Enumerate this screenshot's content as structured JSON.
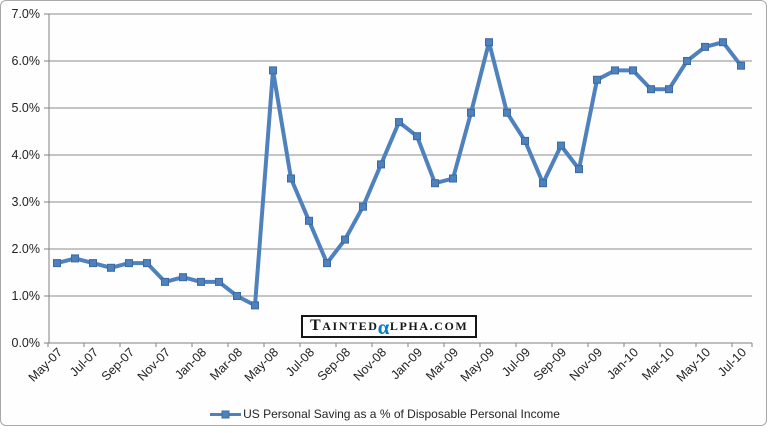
{
  "chart_data": {
    "type": "line",
    "title": "",
    "xlabel": "",
    "ylabel": "",
    "categories": [
      "May-07",
      "Jun-07",
      "Jul-07",
      "Aug-07",
      "Sep-07",
      "Oct-07",
      "Nov-07",
      "Dec-07",
      "Jan-08",
      "Feb-08",
      "Mar-08",
      "Apr-08",
      "May-08",
      "Jun-08",
      "Jul-08",
      "Aug-08",
      "Sep-08",
      "Oct-08",
      "Nov-08",
      "Dec-08",
      "Jan-09",
      "Feb-09",
      "Mar-09",
      "Apr-09",
      "May-09",
      "Jun-09",
      "Jul-09",
      "Aug-09",
      "Sep-09",
      "Oct-09",
      "Nov-09",
      "Dec-09",
      "Jan-10",
      "Feb-10",
      "Mar-10",
      "Apr-10",
      "May-10",
      "Jun-10",
      "Jul-10"
    ],
    "series": [
      {
        "name": "US Personal Saving as a % of Disposable Personal Income",
        "values": [
          1.7,
          1.8,
          1.7,
          1.6,
          1.7,
          1.7,
          1.3,
          1.4,
          1.3,
          1.3,
          1.0,
          0.8,
          5.8,
          3.5,
          2.6,
          1.7,
          2.2,
          2.9,
          3.8,
          4.7,
          4.4,
          3.4,
          3.5,
          4.9,
          6.4,
          4.9,
          4.3,
          3.4,
          4.2,
          3.7,
          5.6,
          5.8,
          5.8,
          5.4,
          5.4,
          6.0,
          6.3,
          6.4,
          5.9
        ]
      }
    ],
    "ylim": [
      0,
      7
    ],
    "ytick_step": 1,
    "ytick_suffix": "%",
    "ytick_decimals": 1,
    "x_label_interval": 2,
    "grid": true,
    "legend_position": "bottom",
    "colors": {
      "series": "#4F81BD",
      "marker_border": "#3A6AA3",
      "grid": "#8C8C8C",
      "axis": "#808080",
      "text": "#222222",
      "frame_border": "#A8A8A8"
    }
  },
  "watermark": {
    "lead": "T",
    "body1": "AINTED",
    "alpha": "α",
    "body2": "LPHA.COM",
    "alpha_color": "#0080C8"
  }
}
